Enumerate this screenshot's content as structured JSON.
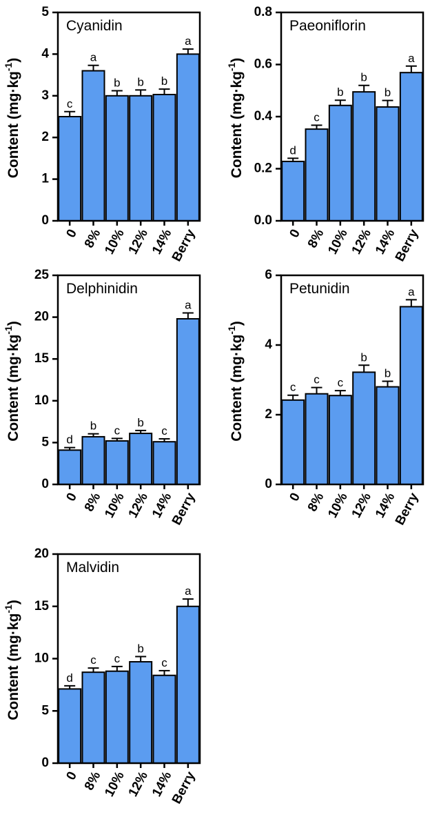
{
  "chart_data": [
    {
      "type": "bar",
      "title": "Cyanidin",
      "ylabel": "Content (mg·kg",
      "ylabel_sup": "-1",
      "ylabel_close": ")",
      "ylim": [
        0,
        5
      ],
      "yticks": [
        0,
        1,
        2,
        3,
        4,
        5
      ],
      "categories": [
        "0",
        "8%",
        "10%",
        "12%",
        "14%",
        "Berry"
      ],
      "values": [
        2.5,
        3.6,
        3.0,
        3.0,
        3.03,
        4.0
      ],
      "errors": [
        0.12,
        0.13,
        0.12,
        0.14,
        0.13,
        0.12
      ],
      "letters": [
        "c",
        "a",
        "b",
        "b",
        "b",
        "a"
      ]
    },
    {
      "type": "bar",
      "title": "Paeoniflorin",
      "ylabel": "Content (mg·kg",
      "ylabel_sup": "-1",
      "ylabel_close": ")",
      "ylim": [
        0,
        0.8
      ],
      "yticks": [
        0.0,
        0.2,
        0.4,
        0.6,
        0.8
      ],
      "ytick_labels": [
        "0.0",
        "0.2",
        "0.4",
        "0.6",
        "0.8"
      ],
      "categories": [
        "0",
        "8%",
        "10%",
        "12%",
        "14%",
        "Berry"
      ],
      "values": [
        0.228,
        0.352,
        0.443,
        0.495,
        0.437,
        0.569
      ],
      "errors": [
        0.012,
        0.015,
        0.02,
        0.025,
        0.025,
        0.025
      ],
      "letters": [
        "d",
        "c",
        "b",
        "b",
        "b",
        "a"
      ]
    },
    {
      "type": "bar",
      "title": "Delphinidin",
      "ylabel": "Content (mg·kg",
      "ylabel_sup": "-1",
      "ylabel_close": ")",
      "ylim": [
        0,
        25
      ],
      "yticks": [
        0,
        5,
        10,
        15,
        20,
        25
      ],
      "categories": [
        "0",
        "8%",
        "10%",
        "12%",
        "14%",
        "Berry"
      ],
      "values": [
        4.1,
        5.7,
        5.2,
        6.1,
        5.1,
        19.8
      ],
      "errors": [
        0.3,
        0.35,
        0.3,
        0.35,
        0.35,
        0.7
      ],
      "letters": [
        "d",
        "b",
        "c",
        "b",
        "c",
        "a"
      ]
    },
    {
      "type": "bar",
      "title": "Petunidin",
      "ylabel": "Content (mg·kg",
      "ylabel_sup": "-1",
      "ylabel_close": ")",
      "ylim": [
        0,
        6
      ],
      "yticks": [
        0,
        2,
        4,
        6
      ],
      "categories": [
        "0",
        "8%",
        "10%",
        "12%",
        "14%",
        "Berry"
      ],
      "values": [
        2.42,
        2.6,
        2.55,
        3.22,
        2.8,
        5.1
      ],
      "errors": [
        0.14,
        0.18,
        0.14,
        0.2,
        0.16,
        0.2
      ],
      "letters": [
        "c",
        "c",
        "c",
        "b",
        "b",
        "a"
      ]
    },
    {
      "type": "bar",
      "title": "Malvidin",
      "ylabel": "Content (mg·kg",
      "ylabel_sup": "-1",
      "ylabel_close": ")",
      "ylim": [
        0,
        20
      ],
      "yticks": [
        0,
        5,
        10,
        15,
        20
      ],
      "categories": [
        "0",
        "8%",
        "10%",
        "12%",
        "14%",
        "Berry"
      ],
      "values": [
        7.1,
        8.7,
        8.8,
        9.7,
        8.4,
        15.0
      ],
      "errors": [
        0.3,
        0.4,
        0.45,
        0.5,
        0.45,
        0.7
      ],
      "letters": [
        "d",
        "c",
        "c",
        "b",
        "c",
        "a"
      ]
    }
  ],
  "colors": {
    "bar_fill": "#5b9cf0",
    "stroke": "#000000"
  }
}
